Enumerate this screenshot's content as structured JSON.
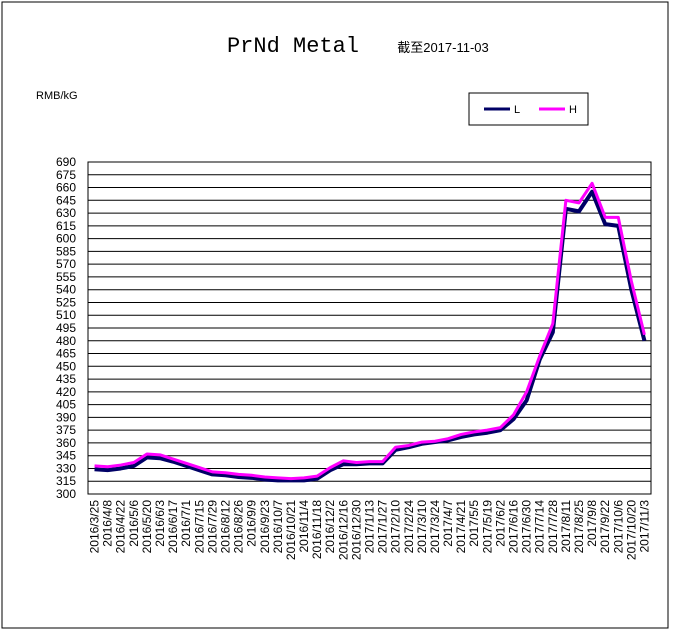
{
  "chart_data": {
    "type": "line",
    "title": "PrNd Metal",
    "subtitle": "截至2017-11-03",
    "y_label": "RMB/kG",
    "categories": [
      "2016/3/25",
      "2016/4/8",
      "2016/4/22",
      "2016/5/6",
      "2016/5/20",
      "2016/6/3",
      "2016/6/17",
      "2016/7/1",
      "2016/7/15",
      "2016/7/29",
      "2016/8/12",
      "2016/8/26",
      "2016/9/9",
      "2016/9/23",
      "2016/10/7",
      "2016/10/21",
      "2016/11/4",
      "2016/11/18",
      "2016/12/2",
      "2016/12/16",
      "2016/12/30",
      "2017/1/13",
      "2017/1/27",
      "2017/2/10",
      "2017/2/24",
      "2017/3/10",
      "2017/3/24",
      "2017/4/7",
      "2017/4/21",
      "2017/5/5",
      "2017/5/19",
      "2017/6/2",
      "2017/6/16",
      "2017/6/30",
      "2017/7/14",
      "2017/7/28",
      "2017/8/11",
      "2017/8/25",
      "2017/9/8",
      "2017/9/22",
      "2017/10/6",
      "2017/10/20",
      "2017/11/3"
    ],
    "series": [
      {
        "name": "L",
        "color": "#000066",
        "values": [
          329,
          328,
          330,
          333,
          343,
          342,
          338,
          333,
          328,
          323,
          322,
          320,
          319,
          317,
          316,
          316,
          316,
          318,
          328,
          335,
          335,
          336,
          336,
          352,
          355,
          359,
          361,
          363,
          367,
          370,
          372,
          375,
          388,
          410,
          458,
          490,
          635,
          632,
          655,
          617,
          615,
          540,
          480
        ]
      },
      {
        "name": "H",
        "color": "#ff00ff",
        "values": [
          333,
          332,
          334,
          337,
          347,
          346,
          341,
          336,
          331,
          326,
          325,
          323,
          322,
          320,
          319,
          318,
          319,
          321,
          331,
          339,
          337,
          338,
          338,
          355,
          357,
          361,
          362,
          365,
          370,
          373,
          375,
          378,
          393,
          420,
          462,
          500,
          645,
          642,
          665,
          625,
          625,
          550,
          487
        ]
      }
    ],
    "ylim": [
      300,
      690
    ],
    "yticks": [
      300,
      315,
      330,
      345,
      360,
      375,
      390,
      405,
      420,
      435,
      450,
      465,
      480,
      495,
      510,
      525,
      540,
      555,
      570,
      585,
      600,
      615,
      630,
      645,
      660,
      675,
      690
    ],
    "grid": true
  }
}
